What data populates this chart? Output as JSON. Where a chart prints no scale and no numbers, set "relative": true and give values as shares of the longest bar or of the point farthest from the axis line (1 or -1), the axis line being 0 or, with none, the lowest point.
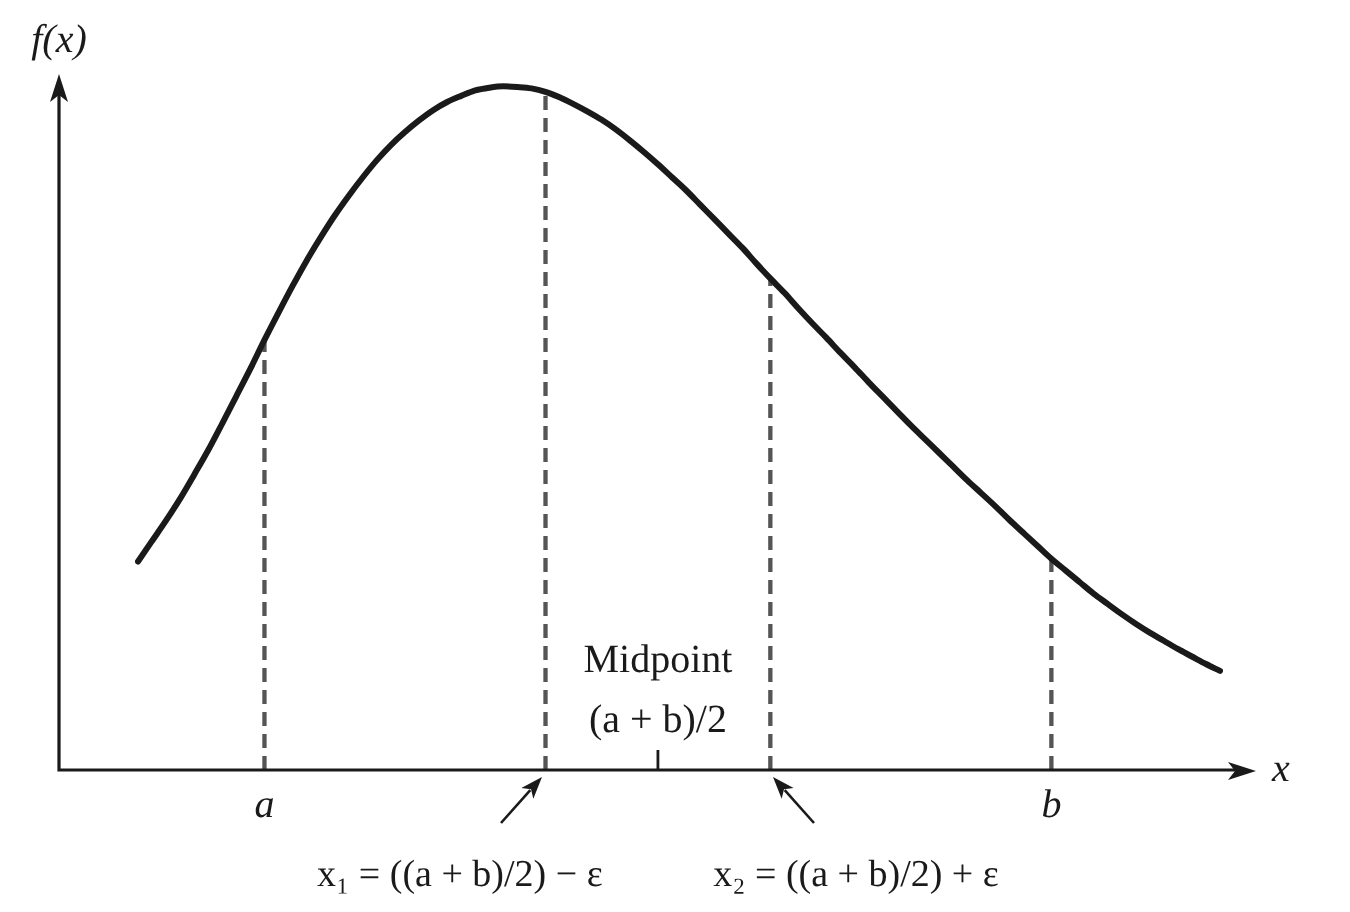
{
  "chart_data": {
    "type": "line",
    "relative": true,
    "categories": [
      null,
      null,
      null,
      null,
      null,
      null,
      null,
      null,
      null,
      "a",
      null,
      null,
      null,
      null,
      null,
      null,
      null,
      null,
      null,
      null,
      null,
      null,
      null,
      null,
      null,
      null,
      null,
      null,
      null,
      null,
      null,
      null,
      null,
      null,
      null,
      null,
      null,
      "Midpoint (a + b)/2",
      null,
      null,
      null,
      null,
      null,
      null,
      null,
      null,
      null,
      null,
      null,
      null,
      null,
      null,
      null,
      null,
      null,
      null,
      null,
      null,
      null,
      null,
      null,
      null,
      null,
      null,
      null,
      "b",
      null,
      null,
      null,
      null,
      null,
      null,
      null,
      null,
      null,
      null,
      null,
      null
    ],
    "series": [
      {
        "color": "#1a1a1a",
        "values": [
          0.305,
          0.335,
          0.365,
          0.397,
          0.432,
          0.468,
          0.507,
          0.547,
          0.587,
          0.629,
          0.669,
          0.708,
          0.745,
          0.779,
          0.811,
          0.84,
          0.867,
          0.892,
          0.914,
          0.933,
          0.95,
          0.965,
          0.977,
          0.986,
          0.994,
          0.998,
          1,
          0.999,
          0.997,
          0.992,
          0.984,
          0.974,
          0.963,
          0.951,
          0.937,
          0.921,
          0.904,
          0.886,
          0.867,
          0.848,
          0.827,
          0.806,
          0.785,
          0.764,
          0.741,
          0.719,
          0.698,
          0.675,
          0.653,
          0.632,
          0.61,
          0.589,
          0.567,
          0.546,
          0.525,
          0.504,
          0.484,
          0.464,
          0.444,
          0.424,
          0.405,
          0.386,
          0.366,
          0.347,
          0.328,
          0.309,
          0.292,
          0.275,
          0.258,
          0.243,
          0.228,
          0.214,
          0.201,
          0.189,
          0.177,
          0.166,
          0.155,
          0.145
        ]
      },
      {
        "type": "bar",
        "color": "#555555",
        "line_style": "dashed",
        "values": [
          null,
          null,
          null,
          null,
          null,
          null,
          null,
          null,
          null,
          0.629,
          null,
          null,
          null,
          null,
          null,
          null,
          null,
          null,
          null,
          null,
          null,
          null,
          null,
          null,
          null,
          null,
          null,
          null,
          null,
          0.992,
          null,
          null,
          null,
          null,
          null,
          null,
          null,
          null,
          null,
          null,
          null,
          null,
          null,
          null,
          null,
          0.719,
          null,
          null,
          null,
          null,
          null,
          null,
          null,
          null,
          null,
          null,
          null,
          null,
          null,
          null,
          null,
          null,
          null,
          null,
          null,
          0.309,
          null,
          null,
          null,
          null,
          null,
          null,
          null,
          null,
          null,
          null,
          null,
          null
        ]
      }
    ],
    "xlabel": "x",
    "ylabel": "f(x)",
    "tick_labels": "x",
    "marker": "none",
    "annotations": [
      "x₁ = ((a + b)/2) − ε",
      "x₂ = ((a + b)/2) + ε"
    ]
  }
}
